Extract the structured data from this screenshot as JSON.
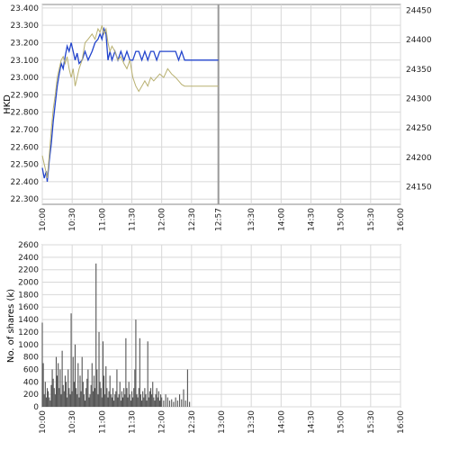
{
  "chart_data": [
    {
      "type": "line",
      "panel": "price",
      "ylabel": "HKD",
      "ylabel_right": "",
      "x_ticks": [
        "10:00",
        "10:30",
        "11:00",
        "11:30",
        "12:00",
        "12:30",
        "12:57",
        "13:30",
        "14:00",
        "14:30",
        "15:00",
        "15:30",
        "16:00"
      ],
      "y_ticks_left": [
        "23.400",
        "23.300",
        "23.200",
        "23.100",
        "23.000",
        "22.900",
        "22.800",
        "22.700",
        "22.600",
        "22.500",
        "22.400",
        "22.300"
      ],
      "y_ticks_right": [
        "24450",
        "24400",
        "24350",
        "24300",
        "24250",
        "24200",
        "24150"
      ],
      "ylim_left": [
        22.27,
        23.42
      ],
      "ylim_right": [
        24120,
        24460
      ],
      "xlim": [
        "10:00",
        "16:00"
      ],
      "grid": true,
      "marker_time": "12:57",
      "series": [
        {
          "axis": "left",
          "color": "#2244cc",
          "points": [
            [
              "10:00",
              22.48
            ],
            [
              "10:02",
              22.42
            ],
            [
              "10:04",
              22.46
            ],
            [
              "10:05",
              22.4
            ],
            [
              "10:07",
              22.52
            ],
            [
              "10:09",
              22.62
            ],
            [
              "10:11",
              22.75
            ],
            [
              "10:13",
              22.85
            ],
            [
              "10:15",
              22.95
            ],
            [
              "10:17",
              23.02
            ],
            [
              "10:19",
              23.08
            ],
            [
              "10:21",
              23.05
            ],
            [
              "10:23",
              23.12
            ],
            [
              "10:25",
              23.18
            ],
            [
              "10:27",
              23.15
            ],
            [
              "10:29",
              23.2
            ],
            [
              "10:31",
              23.15
            ],
            [
              "10:33",
              23.1
            ],
            [
              "10:35",
              23.14
            ],
            [
              "10:37",
              23.08
            ],
            [
              "10:40",
              23.1
            ],
            [
              "10:43",
              23.15
            ],
            [
              "10:46",
              23.1
            ],
            [
              "10:50",
              23.15
            ],
            [
              "10:53",
              23.2
            ],
            [
              "10:56",
              23.22
            ],
            [
              "10:58",
              23.25
            ],
            [
              "11:00",
              23.22
            ],
            [
              "11:02",
              23.28
            ],
            [
              "11:04",
              23.25
            ],
            [
              "11:06",
              23.1
            ],
            [
              "11:08",
              23.15
            ],
            [
              "11:10",
              23.1
            ],
            [
              "11:13",
              23.15
            ],
            [
              "11:16",
              23.1
            ],
            [
              "11:19",
              23.15
            ],
            [
              "11:22",
              23.1
            ],
            [
              "11:25",
              23.15
            ],
            [
              "11:28",
              23.1
            ],
            [
              "11:31",
              23.1
            ],
            [
              "11:34",
              23.15
            ],
            [
              "11:37",
              23.15
            ],
            [
              "11:40",
              23.1
            ],
            [
              "11:43",
              23.15
            ],
            [
              "11:46",
              23.1
            ],
            [
              "11:49",
              23.15
            ],
            [
              "11:52",
              23.15
            ],
            [
              "11:55",
              23.1
            ],
            [
              "11:58",
              23.15
            ],
            [
              "12:02",
              23.15
            ],
            [
              "12:06",
              23.15
            ],
            [
              "12:10",
              23.15
            ],
            [
              "12:14",
              23.15
            ],
            [
              "12:17",
              23.1
            ],
            [
              "12:20",
              23.15
            ],
            [
              "12:23",
              23.1
            ],
            [
              "12:26",
              23.1
            ],
            [
              "12:30",
              23.1
            ],
            [
              "12:57",
              23.1
            ]
          ]
        },
        {
          "axis": "left",
          "color": "#b8b070",
          "points": [
            [
              "10:00",
              22.55
            ],
            [
              "10:02",
              22.5
            ],
            [
              "10:04",
              22.45
            ],
            [
              "10:05",
              22.42
            ],
            [
              "10:07",
              22.55
            ],
            [
              "10:09",
              22.7
            ],
            [
              "10:11",
              22.82
            ],
            [
              "10:13",
              22.9
            ],
            [
              "10:15",
              23.0
            ],
            [
              "10:17",
              23.05
            ],
            [
              "10:19",
              23.1
            ],
            [
              "10:21",
              23.12
            ],
            [
              "10:23",
              23.08
            ],
            [
              "10:25",
              23.12
            ],
            [
              "10:27",
              23.05
            ],
            [
              "10:29",
              23.0
            ],
            [
              "10:31",
              23.05
            ],
            [
              "10:33",
              22.95
            ],
            [
              "10:35",
              23.0
            ],
            [
              "10:37",
              23.05
            ],
            [
              "10:40",
              23.1
            ],
            [
              "10:43",
              23.2
            ],
            [
              "10:46",
              23.22
            ],
            [
              "10:50",
              23.25
            ],
            [
              "10:53",
              23.22
            ],
            [
              "10:56",
              23.28
            ],
            [
              "10:58",
              23.26
            ],
            [
              "11:00",
              23.3
            ],
            [
              "11:02",
              23.25
            ],
            [
              "11:04",
              23.28
            ],
            [
              "11:06",
              23.2
            ],
            [
              "11:08",
              23.15
            ],
            [
              "11:10",
              23.18
            ],
            [
              "11:13",
              23.15
            ],
            [
              "11:16",
              23.1
            ],
            [
              "11:19",
              23.12
            ],
            [
              "11:22",
              23.08
            ],
            [
              "11:25",
              23.05
            ],
            [
              "11:28",
              23.1
            ],
            [
              "11:31",
              23.0
            ],
            [
              "11:34",
              22.95
            ],
            [
              "11:37",
              22.92
            ],
            [
              "11:40",
              22.95
            ],
            [
              "11:43",
              22.98
            ],
            [
              "11:46",
              22.95
            ],
            [
              "11:49",
              23.0
            ],
            [
              "11:52",
              22.98
            ],
            [
              "11:55",
              23.0
            ],
            [
              "11:58",
              23.02
            ],
            [
              "12:02",
              23.0
            ],
            [
              "12:06",
              23.05
            ],
            [
              "12:10",
              23.02
            ],
            [
              "12:14",
              23.0
            ],
            [
              "12:17",
              22.98
            ],
            [
              "12:20",
              22.96
            ],
            [
              "12:23",
              22.95
            ],
            [
              "12:26",
              22.95
            ],
            [
              "12:30",
              22.95
            ],
            [
              "12:57",
              22.95
            ]
          ]
        }
      ]
    },
    {
      "type": "bar",
      "panel": "volume",
      "ylabel": "No. of shares (k)",
      "x_ticks": [
        "10:00",
        "10:30",
        "11:00",
        "11:30",
        "12:00",
        "12:30",
        "13:00",
        "13:30",
        "14:00",
        "14:30",
        "15:00",
        "15:30",
        "16:00"
      ],
      "y_ticks": [
        "2600",
        "2400",
        "2200",
        "2000",
        "1800",
        "1600",
        "1400",
        "1200",
        "1000",
        "800",
        "600",
        "400",
        "200",
        "0"
      ],
      "ylim": [
        0,
        2600
      ],
      "xlim": [
        "10:00",
        "16:00"
      ],
      "grid": true,
      "color": "#555555",
      "bars": [
        [
          "10:00",
          1350
        ],
        [
          "10:01",
          700
        ],
        [
          "10:02",
          200
        ],
        [
          "10:03",
          400
        ],
        [
          "10:04",
          150
        ],
        [
          "10:05",
          300
        ],
        [
          "10:06",
          250
        ],
        [
          "10:07",
          150
        ],
        [
          "10:08",
          100
        ],
        [
          "10:09",
          350
        ],
        [
          "10:10",
          600
        ],
        [
          "10:11",
          450
        ],
        [
          "10:12",
          300
        ],
        [
          "10:13",
          200
        ],
        [
          "10:14",
          800
        ],
        [
          "10:15",
          500
        ],
        [
          "10:16",
          700
        ],
        [
          "10:17",
          300
        ],
        [
          "10:18",
          600
        ],
        [
          "10:19",
          200
        ],
        [
          "10:20",
          900
        ],
        [
          "10:21",
          350
        ],
        [
          "10:22",
          250
        ],
        [
          "10:23",
          500
        ],
        [
          "10:24",
          400
        ],
        [
          "10:25",
          150
        ],
        [
          "10:26",
          600
        ],
        [
          "10:27",
          300
        ],
        [
          "10:28",
          200
        ],
        [
          "10:29",
          1500
        ],
        [
          "10:30",
          250
        ],
        [
          "10:31",
          800
        ],
        [
          "10:32",
          400
        ],
        [
          "10:33",
          1000
        ],
        [
          "10:34",
          300
        ],
        [
          "10:35",
          200
        ],
        [
          "10:36",
          700
        ],
        [
          "10:37",
          150
        ],
        [
          "10:38",
          500
        ],
        [
          "10:39",
          250
        ],
        [
          "10:40",
          800
        ],
        [
          "10:41",
          400
        ],
        [
          "10:42",
          200
        ],
        [
          "10:43",
          100
        ],
        [
          "10:44",
          300
        ],
        [
          "10:45",
          450
        ],
        [
          "10:46",
          600
        ],
        [
          "10:47",
          150
        ],
        [
          "10:48",
          200
        ],
        [
          "10:49",
          350
        ],
        [
          "10:50",
          700
        ],
        [
          "10:51",
          250
        ],
        [
          "10:52",
          500
        ],
        [
          "10:53",
          300
        ],
        [
          "10:54",
          2300
        ],
        [
          "10:55",
          600
        ],
        [
          "10:56",
          200
        ],
        [
          "10:57",
          1200
        ],
        [
          "10:58",
          400
        ],
        [
          "10:59",
          300
        ],
        [
          "11:00",
          150
        ],
        [
          "11:01",
          1050
        ],
        [
          "11:02",
          500
        ],
        [
          "11:03",
          200
        ],
        [
          "11:04",
          650
        ],
        [
          "11:05",
          300
        ],
        [
          "11:06",
          150
        ],
        [
          "11:07",
          250
        ],
        [
          "11:08",
          500
        ],
        [
          "11:09",
          200
        ],
        [
          "11:10",
          150
        ],
        [
          "11:11",
          300
        ],
        [
          "11:12",
          100
        ],
        [
          "11:13",
          200
        ],
        [
          "11:14",
          250
        ],
        [
          "11:15",
          600
        ],
        [
          "11:16",
          150
        ],
        [
          "11:17",
          200
        ],
        [
          "11:18",
          400
        ],
        [
          "11:19",
          100
        ],
        [
          "11:20",
          250
        ],
        [
          "11:21",
          150
        ],
        [
          "11:22",
          300
        ],
        [
          "11:23",
          200
        ],
        [
          "11:24",
          1100
        ],
        [
          "11:25",
          300
        ],
        [
          "11:26",
          150
        ],
        [
          "11:27",
          400
        ],
        [
          "11:28",
          200
        ],
        [
          "11:29",
          100
        ],
        [
          "11:30",
          250
        ],
        [
          "11:31",
          150
        ],
        [
          "11:32",
          300
        ],
        [
          "11:33",
          600
        ],
        [
          "11:34",
          1400
        ],
        [
          "11:35",
          200
        ],
        [
          "11:36",
          150
        ],
        [
          "11:37",
          300
        ],
        [
          "11:38",
          1100
        ],
        [
          "11:39",
          200
        ],
        [
          "11:40",
          100
        ],
        [
          "11:41",
          250
        ],
        [
          "11:42",
          150
        ],
        [
          "11:43",
          300
        ],
        [
          "11:44",
          200
        ],
        [
          "11:45",
          100
        ],
        [
          "11:46",
          1050
        ],
        [
          "11:47",
          150
        ],
        [
          "11:48",
          250
        ],
        [
          "11:49",
          300
        ],
        [
          "11:50",
          200
        ],
        [
          "11:51",
          400
        ],
        [
          "11:52",
          150
        ],
        [
          "11:53",
          100
        ],
        [
          "11:54",
          200
        ],
        [
          "11:55",
          300
        ],
        [
          "11:56",
          150
        ],
        [
          "11:57",
          250
        ],
        [
          "11:58",
          100
        ],
        [
          "11:59",
          200
        ],
        [
          "12:00",
          150
        ],
        [
          "12:02",
          100
        ],
        [
          "12:04",
          200
        ],
        [
          "12:06",
          150
        ],
        [
          "12:08",
          100
        ],
        [
          "12:10",
          120
        ],
        [
          "12:12",
          80
        ],
        [
          "12:14",
          150
        ],
        [
          "12:16",
          100
        ],
        [
          "12:18",
          200
        ],
        [
          "12:20",
          120
        ],
        [
          "12:22",
          280
        ],
        [
          "12:24",
          100
        ],
        [
          "12:26",
          600
        ],
        [
          "12:28",
          80
        ]
      ]
    }
  ]
}
